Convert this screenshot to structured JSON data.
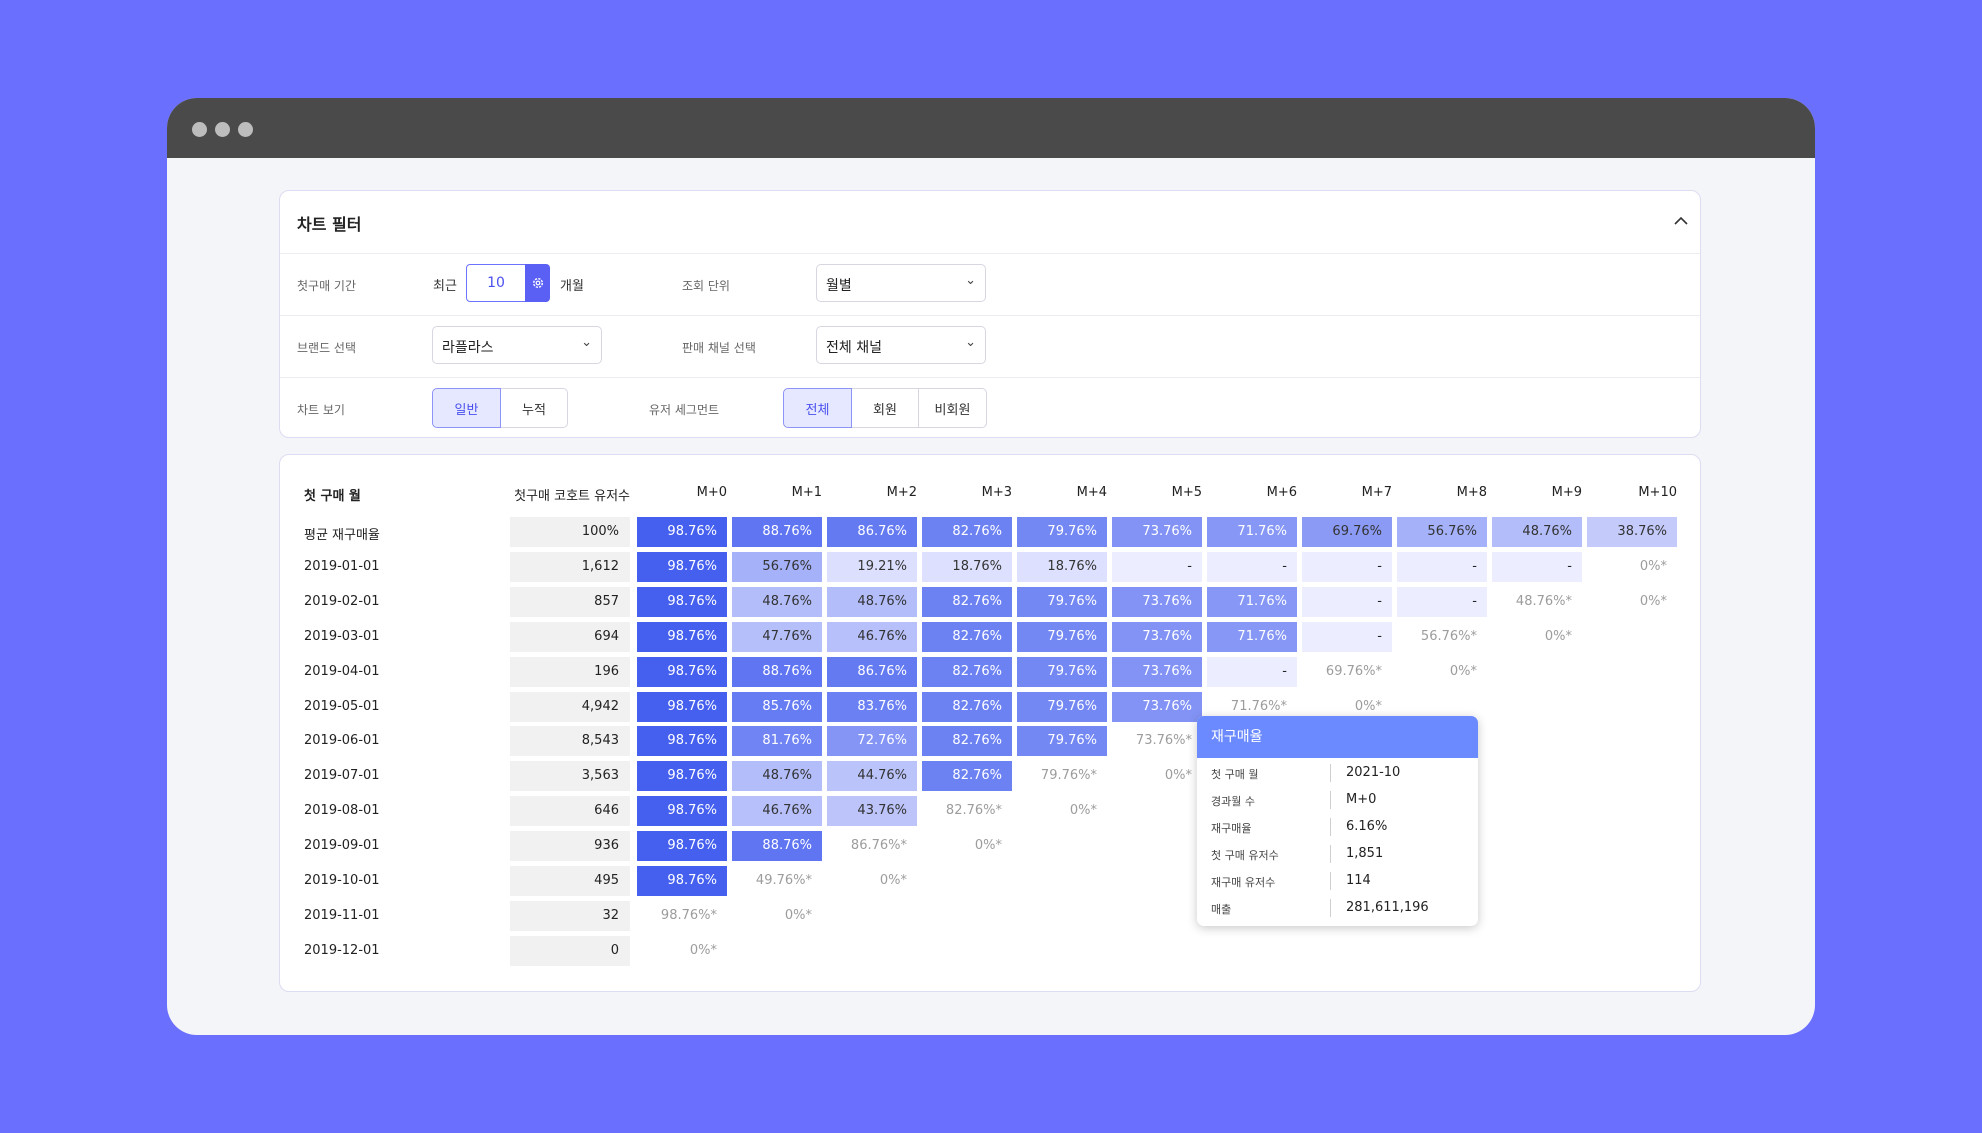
{
  "filter": {
    "title": "차트 필터",
    "period_label": "첫구매 기간",
    "recent_label": "최근",
    "recent_value": "10",
    "month_unit": "개월",
    "view_unit_label": "조회 단위",
    "view_unit_value": "월별",
    "brand_label": "브랜드 선택",
    "brand_value": "라플라스",
    "channel_label": "판매 채널 선택",
    "channel_value": "전체 채널",
    "chart_view_label": "차트 보기",
    "chart_view_options": [
      "일반",
      "누적"
    ],
    "chart_view_selected": "일반",
    "segment_label": "유저 세그먼트",
    "segment_options": [
      "전체",
      "회원",
      "비회원"
    ],
    "segment_selected": "전체"
  },
  "table": {
    "header_month": "첫 구매 월",
    "header_count": "첫구매 코호트 유저수",
    "columns": [
      "M+0",
      "M+1",
      "M+2",
      "M+3",
      "M+4",
      "M+5",
      "M+6",
      "M+7",
      "M+8",
      "M+9",
      "M+10"
    ],
    "rows": [
      {
        "label": "평균 재구매율",
        "count": "100%",
        "cells": [
          "98.76%",
          "88.76%",
          "86.76%",
          "82.76%",
          "79.76%",
          "73.76%",
          "71.76%",
          "69.76%",
          "56.76%",
          "48.76%",
          "38.76%"
        ]
      },
      {
        "label": "2019-01-01",
        "count": "1,612",
        "cells": [
          "98.76%",
          "56.76%",
          "19.21%",
          "18.76%",
          "18.76%",
          "-",
          "-",
          "-",
          "-",
          "-",
          "0%*"
        ]
      },
      {
        "label": "2019-02-01",
        "count": "857",
        "cells": [
          "98.76%",
          "48.76%",
          "48.76%",
          "82.76%",
          "79.76%",
          "73.76%",
          "71.76%",
          "-",
          "-",
          "48.76%*",
          "0%*"
        ]
      },
      {
        "label": "2019-03-01",
        "count": "694",
        "cells": [
          "98.76%",
          "47.76%",
          "46.76%",
          "82.76%",
          "79.76%",
          "73.76%",
          "71.76%",
          "-",
          "56.76%*",
          "0%*",
          ""
        ]
      },
      {
        "label": "2019-04-01",
        "count": "196",
        "cells": [
          "98.76%",
          "88.76%",
          "86.76%",
          "82.76%",
          "79.76%",
          "73.76%",
          "-",
          "69.76%*",
          "0%*",
          "",
          ""
        ]
      },
      {
        "label": "2019-05-01",
        "count": "4,942",
        "cells": [
          "98.76%",
          "85.76%",
          "83.76%",
          "82.76%",
          "79.76%",
          "73.76%",
          "71.76%*",
          "0%*",
          "",
          "",
          ""
        ]
      },
      {
        "label": "2019-06-01",
        "count": "8,543",
        "cells": [
          "98.76%",
          "81.76%",
          "72.76%",
          "82.76%",
          "79.76%",
          "73.76%*",
          "",
          "",
          "",
          "",
          ""
        ]
      },
      {
        "label": "2019-07-01",
        "count": "3,563",
        "cells": [
          "98.76%",
          "48.76%",
          "44.76%",
          "82.76%",
          "79.76%*",
          "0%*",
          "",
          "",
          "",
          "",
          ""
        ]
      },
      {
        "label": "2019-08-01",
        "count": "646",
        "cells": [
          "98.76%",
          "46.76%",
          "43.76%",
          "82.76%*",
          "0%*",
          "",
          "",
          "",
          "",
          "",
          ""
        ]
      },
      {
        "label": "2019-09-01",
        "count": "936",
        "cells": [
          "98.76%",
          "88.76%",
          "86.76%*",
          "0%*",
          "",
          "",
          "",
          "",
          "",
          "",
          ""
        ]
      },
      {
        "label": "2019-10-01",
        "count": "495",
        "cells": [
          "98.76%",
          "49.76%*",
          "0%*",
          "",
          "",
          "",
          "",
          "",
          "",
          "",
          ""
        ]
      },
      {
        "label": "2019-11-01",
        "count": "32",
        "cells": [
          "98.76%*",
          "0%*",
          "",
          "",
          "",
          "",
          "",
          "",
          "",
          "",
          ""
        ]
      },
      {
        "label": "2019-12-01",
        "count": "0",
        "cells": [
          "0%*",
          "",
          "",
          "",
          "",
          "",
          "",
          "",
          "",
          "",
          ""
        ]
      }
    ]
  },
  "tooltip": {
    "title": "재구매율",
    "items": [
      {
        "key": "첫 구매 월",
        "value": "2021-10"
      },
      {
        "key": "경과월 수",
        "value": "M+0"
      },
      {
        "key": "재구매율",
        "value": "6.16%"
      },
      {
        "key": "첫 구매 유저수",
        "value": "1,851"
      },
      {
        "key": "재구매 유저수",
        "value": "114"
      },
      {
        "key": "매출",
        "value": "281,611,196"
      }
    ]
  },
  "colors": {
    "background": "#6b6ffe",
    "accent": "#5a60f4",
    "tooltip_header": "#6b8aff"
  },
  "icons": {
    "settings": "gear-icon",
    "collapse": "chevron-up-icon",
    "dropdown": "chevron-down-icon"
  }
}
